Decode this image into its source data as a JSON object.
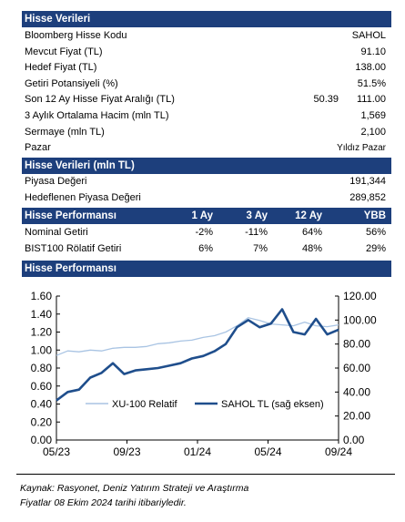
{
  "stock_info": {
    "header": "Hisse Verileri",
    "rows": [
      {
        "label": "Bloomberg Hisse Kodu",
        "value": "SAHOL"
      },
      {
        "label": "Mevcut Fiyat (TL)",
        "value": "91.10"
      },
      {
        "label": "Hedef Fiyat (TL)",
        "value": "138.00"
      },
      {
        "label": "Getiri Potansiyeli (%)",
        "value": "51.5%"
      },
      {
        "label": "Son 12 Ay Hisse Fiyat Aralığı (TL)",
        "low": "50.39",
        "value": "111.00"
      },
      {
        "label": "3 Aylık Ortalama Hacim (mln TL)",
        "value": "1,569"
      },
      {
        "label": "Sermaye (mln TL)",
        "value": "2,100"
      },
      {
        "label": "Pazar",
        "value": "Yıldız Pazar"
      }
    ]
  },
  "market_value": {
    "header": "Hisse Verileri (mln TL)",
    "rows": [
      {
        "label": "Piyasa Değeri",
        "value": "191,344"
      },
      {
        "label": "Hedeflenen Piyasa Değeri",
        "value": "289,852"
      }
    ]
  },
  "performance": {
    "header": "Hisse Performansı",
    "columns": [
      "1 Ay",
      "3 Ay",
      "12 Ay",
      "YBB"
    ],
    "rows": [
      {
        "label": "Nominal Getiri",
        "values": [
          "-2%",
          "-11%",
          "64%",
          "56%"
        ]
      },
      {
        "label": "BIST100 Rölatif Getiri",
        "values": [
          "6%",
          "7%",
          "48%",
          "29%"
        ]
      }
    ]
  },
  "chart_header": "Hisse Performansı",
  "chart_data": {
    "type": "line",
    "x_ticks": [
      "05/23",
      "09/23",
      "01/24",
      "05/24",
      "09/24"
    ],
    "left_ticks": [
      "1.60",
      "1.40",
      "1.20",
      "1.00",
      "0.80",
      "0.60",
      "0.40",
      "0.20",
      "0.00"
    ],
    "right_ticks": [
      "120.00",
      "100.00",
      "80.00",
      "60.00",
      "40.00",
      "20.00",
      "0.00"
    ],
    "left_ylim": [
      0,
      1.6
    ],
    "right_ylim": [
      0,
      120
    ],
    "series": [
      {
        "name": "XU-100 Relatif",
        "axis": "left",
        "color": "#a9c4e3",
        "x": [
          0,
          0.04,
          0.08,
          0.12,
          0.16,
          0.2,
          0.24,
          0.28,
          0.32,
          0.36,
          0.4,
          0.44,
          0.48,
          0.52,
          0.56,
          0.6,
          0.64,
          0.68,
          0.72,
          0.76,
          0.8,
          0.84,
          0.88,
          0.92,
          0.96,
          1
        ],
        "values": [
          0.94,
          0.99,
          0.98,
          1.0,
          0.99,
          1.02,
          1.03,
          1.03,
          1.04,
          1.07,
          1.08,
          1.1,
          1.11,
          1.14,
          1.16,
          1.2,
          1.27,
          1.36,
          1.33,
          1.29,
          1.28,
          1.27,
          1.31,
          1.27,
          1.26,
          1.28
        ]
      },
      {
        "name": "SAHOL TL (sağ eksen)",
        "axis": "right",
        "color": "#1f4e8c",
        "x": [
          0,
          0.04,
          0.08,
          0.12,
          0.16,
          0.2,
          0.24,
          0.28,
          0.32,
          0.36,
          0.4,
          0.44,
          0.48,
          0.52,
          0.56,
          0.6,
          0.64,
          0.68,
          0.72,
          0.76,
          0.8,
          0.84,
          0.88,
          0.92,
          0.96,
          1
        ],
        "values": [
          33,
          40,
          42,
          52,
          56,
          64,
          55,
          58,
          59,
          60,
          62,
          64,
          68,
          70,
          74,
          80,
          94,
          100,
          94,
          97,
          109,
          90,
          88,
          101,
          88,
          92
        ]
      }
    ]
  },
  "footnote": {
    "line1": "Kaynak: Rasyonet, Deniz Yatırım Strateji ve Araştırma",
    "line2": "Fiyatlar 08 Ekim 2024 tarihi itibariyledir."
  }
}
